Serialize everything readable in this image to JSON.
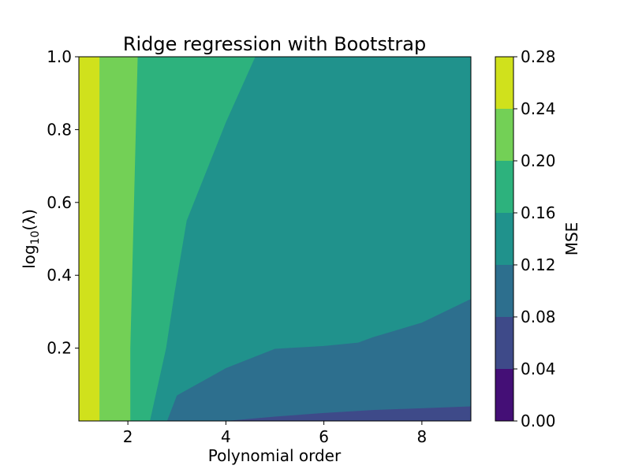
{
  "chart_data": {
    "type": "heatmap",
    "title": "Ridge regression with Bootstrap",
    "xlabel": "Polynomial order",
    "ylabel_base": "log",
    "ylabel_sub": "10",
    "ylabel_arg": "(λ)",
    "colorbar_label": "MSE",
    "xlim": [
      1,
      9
    ],
    "ylim": [
      0,
      1.0
    ],
    "x_ticks": [
      2,
      4,
      6,
      8
    ],
    "y_ticks": [
      0.2,
      0.4,
      0.6,
      0.8,
      1.0
    ],
    "y_tick_labels": [
      "0.2",
      "0.4",
      "0.6",
      "0.8",
      "1.0"
    ],
    "levels": [
      0.0,
      0.04,
      0.08,
      0.12,
      0.16,
      0.2,
      0.24,
      0.28
    ],
    "level_labels": [
      "0.00",
      "0.04",
      "0.08",
      "0.12",
      "0.16",
      "0.20",
      "0.24",
      "0.28"
    ],
    "level_colors": [
      "#440f76",
      "#3e4a89",
      "#2d6f8e",
      "#20928c",
      "#2db27d",
      "#73d056",
      "#d0e11c"
    ],
    "contour_boundaries": [
      {
        "between": [
          0.24,
          0.28
        ],
        "points": [
          [
            1.42,
            0.0
          ],
          [
            1.42,
            1.0
          ]
        ]
      },
      {
        "between": [
          0.2,
          0.24
        ],
        "points": [
          [
            2.05,
            0.0
          ],
          [
            2.05,
            0.2
          ],
          [
            2.2,
            1.0
          ]
        ]
      },
      {
        "between": [
          0.16,
          0.2
        ],
        "points": [
          [
            2.45,
            0.0
          ],
          [
            2.78,
            0.2
          ],
          [
            2.95,
            0.35
          ],
          [
            3.2,
            0.55
          ],
          [
            4.0,
            0.82
          ],
          [
            4.6,
            1.0
          ]
        ]
      },
      {
        "between": [
          0.12,
          0.16
        ],
        "points": [
          [
            2.8,
            0.0
          ],
          [
            3.0,
            0.07
          ],
          [
            4.0,
            0.145
          ],
          [
            5.0,
            0.198
          ],
          [
            6.0,
            0.206
          ],
          [
            6.7,
            0.215
          ],
          [
            7.0,
            0.23
          ],
          [
            8.0,
            0.27
          ],
          [
            9.0,
            0.335
          ]
        ]
      },
      {
        "between": [
          0.08,
          0.12
        ],
        "points": [
          [
            4.0,
            0.0
          ],
          [
            5.0,
            0.012
          ],
          [
            6.0,
            0.022
          ],
          [
            7.0,
            0.03
          ],
          [
            8.0,
            0.035
          ],
          [
            9.0,
            0.04
          ]
        ]
      }
    ]
  }
}
